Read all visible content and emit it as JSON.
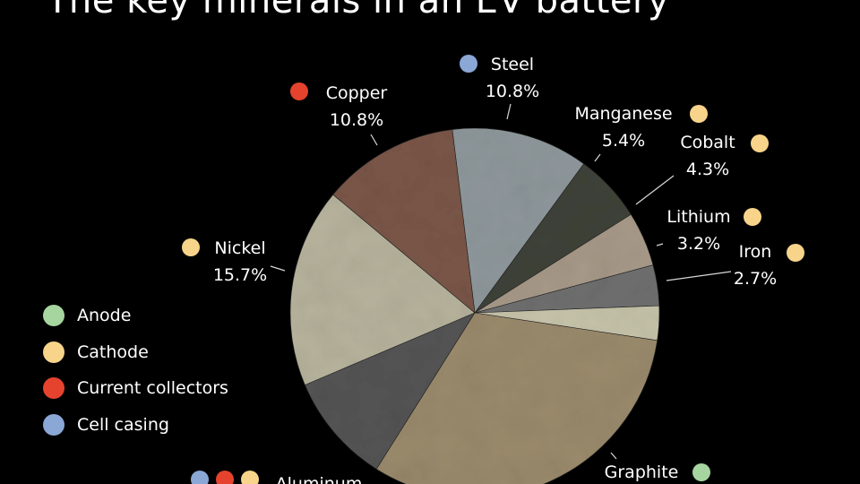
{
  "chart_data": {
    "type": "pie",
    "title": "The key minerals in an EV battery",
    "categories": [
      {
        "key": "anode",
        "name": "Anode",
        "color": "#A6D5A0"
      },
      {
        "key": "cathode",
        "name": "Cathode",
        "color": "#F7D48A"
      },
      {
        "key": "current",
        "name": "Current collectors",
        "color": "#E5432E"
      },
      {
        "key": "casing",
        "name": "Cell casing",
        "color": "#8AA7D6"
      }
    ],
    "slices": [
      {
        "name": "Steel",
        "value_label": "10.8%",
        "value": 10.8,
        "groups": [
          "casing"
        ],
        "fill": "#8E979B"
      },
      {
        "name": "Manganese",
        "value_label": "5.4%",
        "value": 5.4,
        "groups": [
          "cathode"
        ],
        "fill": "#3F4238"
      },
      {
        "name": "Cobalt",
        "value_label": "4.3%",
        "value": 4.3,
        "groups": [
          "cathode"
        ],
        "fill": "#A79988"
      },
      {
        "name": "Lithium",
        "value_label": "3.2%",
        "value": 3.2,
        "groups": [
          "cathode"
        ],
        "fill": "#6F6F6F"
      },
      {
        "name": "Iron",
        "value_label": "2.7%",
        "value": 2.7,
        "groups": [
          "cathode"
        ],
        "fill": "#C5C2A9"
      },
      {
        "name": "Graphite",
        "value_label": "",
        "value": 28.4,
        "groups": [
          "anode"
        ],
        "fill": "#9A8A6C"
      },
      {
        "name": "Aluminum",
        "value_label": "",
        "value": 8.7,
        "groups": [
          "casing",
          "current",
          "cathode"
        ],
        "fill": "#545454"
      },
      {
        "name": "Nickel",
        "value_label": "15.7%",
        "value": 15.7,
        "groups": [
          "cathode"
        ],
        "fill": "#B6B29C"
      },
      {
        "name": "Copper",
        "value_label": "10.8%",
        "value": 10.8,
        "groups": [
          "current"
        ],
        "fill": "#7A5648"
      }
    ]
  }
}
